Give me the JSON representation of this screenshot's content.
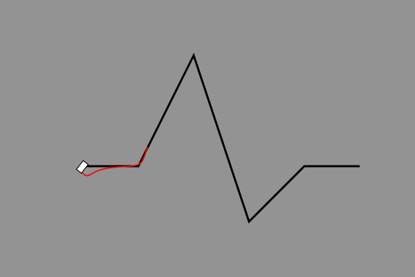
{
  "scene": {
    "background_color": "#939393",
    "track_color": "#000000",
    "trace_color": "#ff0000",
    "marker_fill": "#ffffff",
    "marker_stroke": "#000000"
  },
  "track": {
    "icon": "zigzag-track-path"
  },
  "trace": {
    "icon": "red-trace-path"
  },
  "marker": {
    "icon": "rectangular-cursor-icon"
  }
}
